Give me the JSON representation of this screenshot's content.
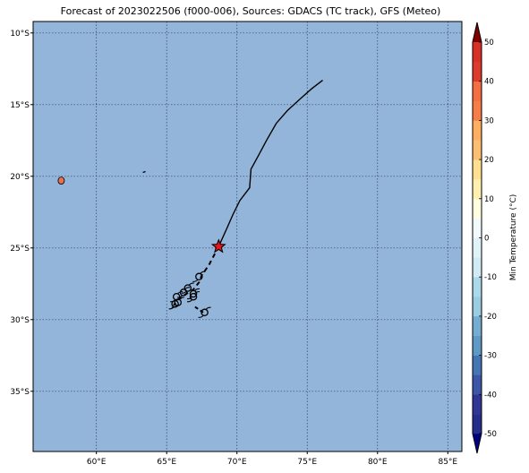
{
  "title": "Forecast of 2023022506 (f000-006), Sources: GDACS (TC track), GFS (Meteo)",
  "map": {
    "lon_range": [
      55.5,
      86.0
    ],
    "lat_range": [
      -39.2,
      -9.2
    ],
    "ocean_color": "#92b5d9",
    "land_color": "#e8704e",
    "grid_color": "#2a3f6a",
    "lon_ticks": [
      {
        "value": 60,
        "label": "60°E"
      },
      {
        "value": 65,
        "label": "65°E"
      },
      {
        "value": 70,
        "label": "70°E"
      },
      {
        "value": 75,
        "label": "75°E"
      },
      {
        "value": 80,
        "label": "80°E"
      },
      {
        "value": 85,
        "label": "85°E"
      }
    ],
    "lat_ticks": [
      {
        "value": -10,
        "label": "10°S"
      },
      {
        "value": -15,
        "label": "15°S"
      },
      {
        "value": -20,
        "label": "20°S"
      },
      {
        "value": -25,
        "label": "25°S"
      },
      {
        "value": -30,
        "label": "30°S"
      },
      {
        "value": -35,
        "label": "35°S"
      }
    ],
    "islands": [
      {
        "name": "Réunion",
        "lon": 57.5,
        "lat": -20.3
      },
      {
        "name": "Rodrigues",
        "lon": 63.4,
        "lat": -19.7
      }
    ]
  },
  "track": {
    "past": [
      [
        76.1,
        -13.3
      ],
      [
        75.3,
        -13.9
      ],
      [
        74.5,
        -14.6
      ],
      [
        73.6,
        -15.4
      ],
      [
        72.8,
        -16.3
      ],
      [
        72.1,
        -17.5
      ],
      [
        71.5,
        -18.6
      ],
      [
        71.0,
        -19.5
      ],
      [
        70.9,
        -20.8
      ],
      [
        70.2,
        -21.7
      ],
      [
        69.7,
        -22.7
      ],
      [
        69.3,
        -23.6
      ],
      [
        68.7,
        -24.9
      ]
    ],
    "current": {
      "lon": 68.7,
      "lat": -24.9
    },
    "forecast": [
      [
        68.7,
        -24.9
      ],
      [
        68.0,
        -26.2
      ],
      [
        67.5,
        -26.9
      ],
      [
        67.3,
        -27.4
      ],
      [
        66.9,
        -27.9
      ],
      [
        66.4,
        -28.2
      ],
      [
        65.8,
        -28.6
      ],
      [
        65.5,
        -29.0
      ]
    ],
    "forecast_tail": [
      [
        67.6,
        -29.5
      ],
      [
        67.0,
        -29.1
      ]
    ],
    "positions": [
      [
        67.3,
        -27.0
      ],
      [
        66.5,
        -27.8
      ],
      [
        66.9,
        -28.2
      ],
      [
        66.9,
        -28.4
      ],
      [
        66.2,
        -28.1
      ],
      [
        65.7,
        -28.4
      ],
      [
        65.8,
        -28.8
      ],
      [
        65.6,
        -28.9
      ],
      [
        67.7,
        -29.5
      ]
    ]
  },
  "colorbar": {
    "label": "Min Temperature (°C)",
    "levels": [
      -55,
      -50,
      -45,
      -40,
      -35,
      -30,
      -25,
      -20,
      -15,
      -10,
      -5,
      0,
      5,
      10,
      15,
      20,
      25,
      30,
      35,
      40,
      45,
      50,
      55
    ],
    "colors": [
      "#000080",
      "#262e8c",
      "#313695",
      "#3e56a8",
      "#4575b4",
      "#5f9ac6",
      "#74add1",
      "#9bcde2",
      "#abd9e9",
      "#d0ebf3",
      "#e0f3f8",
      "#f3fafc",
      "#ffffe0",
      "#fff0b0",
      "#fee090",
      "#fdbe74",
      "#fdae61",
      "#f67d4a",
      "#f46d43",
      "#db3a2d",
      "#d73027",
      "#b8102b",
      "#a50026",
      "#800000"
    ],
    "ticks": [
      -50,
      -40,
      -30,
      -20,
      -10,
      0,
      10,
      20,
      30,
      40,
      50
    ]
  }
}
